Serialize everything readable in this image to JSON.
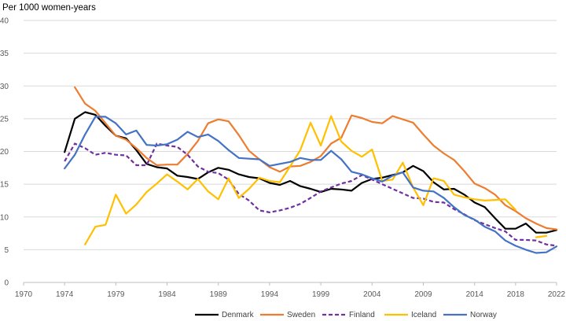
{
  "chart_data": {
    "type": "line",
    "title": "Per 1000 women-years",
    "xlabel": "",
    "ylabel": "Per 1000 women-years",
    "xlim": [
      1970,
      2022
    ],
    "ylim": [
      0,
      40
    ],
    "x_ticks": [
      1970,
      1974,
      1979,
      1984,
      1989,
      1994,
      1999,
      2004,
      2009,
      2014,
      2018,
      2022
    ],
    "y_ticks": [
      0,
      5,
      10,
      15,
      20,
      25,
      30,
      35,
      40
    ],
    "grid": true,
    "legend_position": "bottom",
    "series": [
      {
        "name": "Denmark",
        "color": "#000000",
        "dash": "solid",
        "points": [
          [
            1974,
            19.9
          ],
          [
            1975,
            25.0
          ],
          [
            1976,
            26.0
          ],
          [
            1977,
            25.6
          ],
          [
            1978,
            23.9
          ],
          [
            1979,
            22.4
          ],
          [
            1980,
            22.0
          ],
          [
            1981,
            20.2
          ],
          [
            1982,
            18.1
          ],
          [
            1983,
            17.6
          ],
          [
            1984,
            17.4
          ],
          [
            1985,
            16.3
          ],
          [
            1986,
            16.1
          ],
          [
            1987,
            15.8
          ],
          [
            1988,
            16.8
          ],
          [
            1989,
            17.5
          ],
          [
            1990,
            17.2
          ],
          [
            1991,
            16.5
          ],
          [
            1992,
            16.1
          ],
          [
            1993,
            15.9
          ],
          [
            1994,
            15.2
          ],
          [
            1995,
            14.9
          ],
          [
            1996,
            15.5
          ],
          [
            1997,
            14.7
          ],
          [
            1998,
            14.3
          ],
          [
            1999,
            13.8
          ],
          [
            2000,
            14.3
          ],
          [
            2001,
            14.2
          ],
          [
            2002,
            14.0
          ],
          [
            2003,
            15.2
          ],
          [
            2004,
            15.8
          ],
          [
            2005,
            16.0
          ],
          [
            2006,
            16.4
          ],
          [
            2007,
            16.8
          ],
          [
            2008,
            17.8
          ],
          [
            2009,
            17.0
          ],
          [
            2010,
            15.3
          ],
          [
            2011,
            14.2
          ],
          [
            2012,
            14.3
          ],
          [
            2013,
            13.4
          ],
          [
            2014,
            12.2
          ],
          [
            2015,
            11.5
          ],
          [
            2016,
            9.8
          ],
          [
            2017,
            8.2
          ],
          [
            2018,
            8.2
          ],
          [
            2019,
            9.0
          ],
          [
            2020,
            7.6
          ],
          [
            2021,
            7.6
          ],
          [
            2022,
            8.0
          ]
        ]
      },
      {
        "name": "Sweden",
        "color": "#ED7D31",
        "dash": "solid",
        "points": [
          [
            1975,
            29.8
          ],
          [
            1976,
            27.3
          ],
          [
            1977,
            26.2
          ],
          [
            1978,
            24.3
          ],
          [
            1979,
            22.4
          ],
          [
            1980,
            21.8
          ],
          [
            1981,
            20.5
          ],
          [
            1982,
            19.0
          ],
          [
            1983,
            17.9
          ],
          [
            1984,
            18.0
          ],
          [
            1985,
            18.0
          ],
          [
            1986,
            19.6
          ],
          [
            1987,
            21.6
          ],
          [
            1988,
            24.3
          ],
          [
            1989,
            24.9
          ],
          [
            1990,
            24.6
          ],
          [
            1991,
            22.5
          ],
          [
            1992,
            20.1
          ],
          [
            1993,
            18.8
          ],
          [
            1994,
            17.6
          ],
          [
            1995,
            16.9
          ],
          [
            1996,
            17.7
          ],
          [
            1997,
            17.8
          ],
          [
            1998,
            18.4
          ],
          [
            1999,
            19.3
          ],
          [
            2000,
            21.2
          ],
          [
            2001,
            22.1
          ],
          [
            2002,
            25.5
          ],
          [
            2003,
            25.1
          ],
          [
            2004,
            24.5
          ],
          [
            2005,
            24.3
          ],
          [
            2006,
            25.4
          ],
          [
            2007,
            24.9
          ],
          [
            2008,
            24.4
          ],
          [
            2009,
            22.6
          ],
          [
            2010,
            20.9
          ],
          [
            2011,
            19.7
          ],
          [
            2012,
            18.7
          ],
          [
            2013,
            17.0
          ],
          [
            2014,
            15.1
          ],
          [
            2015,
            14.4
          ],
          [
            2016,
            13.4
          ],
          [
            2017,
            11.8
          ],
          [
            2018,
            10.9
          ],
          [
            2019,
            9.8
          ],
          [
            2020,
            9.0
          ],
          [
            2021,
            8.3
          ],
          [
            2022,
            8.1
          ]
        ]
      },
      {
        "name": "Finland",
        "color": "#7030A0",
        "dash": "dashed",
        "points": [
          [
            1974,
            18.5
          ],
          [
            1975,
            21.2
          ],
          [
            1976,
            20.5
          ],
          [
            1977,
            19.5
          ],
          [
            1978,
            19.8
          ],
          [
            1979,
            19.5
          ],
          [
            1980,
            19.4
          ],
          [
            1981,
            17.9
          ],
          [
            1982,
            17.9
          ],
          [
            1983,
            21.2
          ],
          [
            1984,
            20.9
          ],
          [
            1985,
            20.7
          ],
          [
            1986,
            19.5
          ],
          [
            1987,
            17.7
          ],
          [
            1988,
            16.9
          ],
          [
            1989,
            16.7
          ],
          [
            1990,
            15.7
          ],
          [
            1991,
            13.5
          ],
          [
            1992,
            12.5
          ],
          [
            1993,
            11.0
          ],
          [
            1994,
            10.7
          ],
          [
            1995,
            11.0
          ],
          [
            1996,
            11.4
          ],
          [
            1997,
            12.0
          ],
          [
            1998,
            12.9
          ],
          [
            1999,
            13.9
          ],
          [
            2000,
            14.5
          ],
          [
            2001,
            15.1
          ],
          [
            2002,
            15.5
          ],
          [
            2003,
            16.4
          ],
          [
            2004,
            15.7
          ],
          [
            2005,
            15.0
          ],
          [
            2006,
            14.3
          ],
          [
            2007,
            13.6
          ],
          [
            2008,
            12.9
          ],
          [
            2009,
            12.8
          ],
          [
            2010,
            12.3
          ],
          [
            2011,
            12.2
          ],
          [
            2012,
            11.2
          ],
          [
            2013,
            10.4
          ],
          [
            2014,
            9.5
          ],
          [
            2015,
            8.9
          ],
          [
            2016,
            8.3
          ],
          [
            2017,
            7.8
          ],
          [
            2018,
            6.5
          ],
          [
            2019,
            6.5
          ],
          [
            2020,
            6.4
          ],
          [
            2021,
            5.8
          ],
          [
            2022,
            5.6
          ]
        ]
      },
      {
        "name": "Iceland",
        "color": "#FFC000",
        "dash": "solid",
        "points": [
          [
            1976,
            5.8
          ],
          [
            1977,
            8.5
          ],
          [
            1978,
            8.8
          ],
          [
            1979,
            13.4
          ],
          [
            1980,
            10.5
          ],
          [
            1981,
            11.9
          ],
          [
            1982,
            13.8
          ],
          [
            1983,
            15.1
          ],
          [
            1984,
            16.5
          ],
          [
            1985,
            15.4
          ],
          [
            1986,
            14.2
          ],
          [
            1987,
            15.8
          ],
          [
            1988,
            13.9
          ],
          [
            1989,
            12.7
          ],
          [
            1990,
            15.9
          ],
          [
            1991,
            12.9
          ],
          [
            1992,
            14.3
          ],
          [
            1993,
            16.0
          ],
          [
            1994,
            15.5
          ],
          [
            1995,
            15.3
          ],
          [
            1996,
            17.7
          ],
          [
            1997,
            20.2
          ],
          [
            1998,
            24.4
          ],
          [
            1999,
            20.9
          ],
          [
            2000,
            25.4
          ],
          [
            2001,
            21.5
          ],
          [
            2002,
            20.1
          ],
          [
            2003,
            19.2
          ],
          [
            2004,
            20.3
          ],
          [
            2005,
            15.5
          ],
          [
            2006,
            15.7
          ],
          [
            2007,
            18.3
          ],
          [
            2008,
            14.5
          ],
          [
            2009,
            11.8
          ],
          [
            2010,
            15.9
          ],
          [
            2011,
            15.5
          ],
          [
            2012,
            13.4
          ],
          [
            2013,
            13.0
          ],
          [
            2014,
            12.7
          ],
          [
            2015,
            12.5
          ],
          [
            2016,
            12.6
          ],
          [
            2017,
            12.7
          ],
          [
            2018,
            11.1
          ],
          [
            2020,
            6.9
          ],
          [
            2021,
            7.1
          ]
        ]
      },
      {
        "name": "Norway",
        "color": "#4472C4",
        "dash": "solid",
        "points": [
          [
            1974,
            17.4
          ],
          [
            1975,
            19.5
          ],
          [
            1976,
            22.6
          ],
          [
            1977,
            25.3
          ],
          [
            1978,
            25.3
          ],
          [
            1979,
            24.3
          ],
          [
            1980,
            22.6
          ],
          [
            1981,
            23.2
          ],
          [
            1982,
            21.0
          ],
          [
            1983,
            20.9
          ],
          [
            1984,
            21.1
          ],
          [
            1985,
            21.8
          ],
          [
            1986,
            23.0
          ],
          [
            1987,
            22.2
          ],
          [
            1988,
            22.6
          ],
          [
            1989,
            21.6
          ],
          [
            1990,
            20.2
          ],
          [
            1991,
            19.0
          ],
          [
            1992,
            18.9
          ],
          [
            1993,
            18.8
          ],
          [
            1994,
            17.8
          ],
          [
            1995,
            18.1
          ],
          [
            1996,
            18.4
          ],
          [
            1997,
            19.0
          ],
          [
            1998,
            18.7
          ],
          [
            1999,
            18.7
          ],
          [
            2000,
            20.1
          ],
          [
            2001,
            18.8
          ],
          [
            2002,
            16.9
          ],
          [
            2003,
            16.5
          ],
          [
            2004,
            15.9
          ],
          [
            2005,
            15.4
          ],
          [
            2006,
            16.3
          ],
          [
            2007,
            16.8
          ],
          [
            2008,
            14.5
          ],
          [
            2009,
            14.0
          ],
          [
            2010,
            13.9
          ],
          [
            2011,
            12.9
          ],
          [
            2012,
            11.5
          ],
          [
            2013,
            10.3
          ],
          [
            2014,
            9.6
          ],
          [
            2015,
            8.5
          ],
          [
            2016,
            7.8
          ],
          [
            2017,
            6.4
          ],
          [
            2018,
            5.6
          ],
          [
            2019,
            5.0
          ],
          [
            2020,
            4.5
          ],
          [
            2021,
            4.6
          ],
          [
            2022,
            5.5
          ]
        ]
      }
    ]
  }
}
